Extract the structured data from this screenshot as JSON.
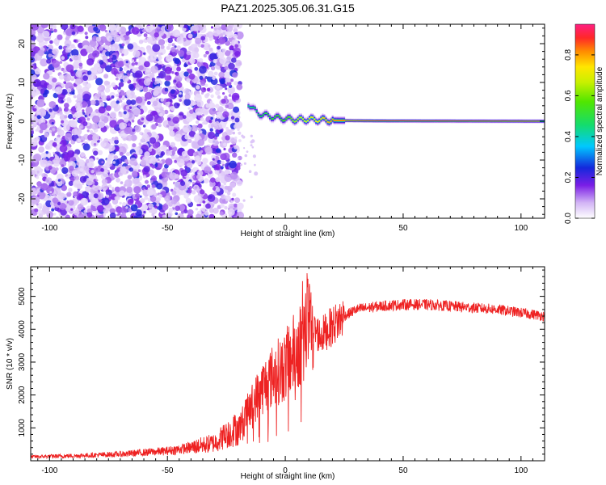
{
  "chart_data": [
    {
      "type": "heatmap",
      "title": "PAZ1.2025.305.06.31.G15",
      "xlabel": "Height of straight line (km)",
      "ylabel": "Frequency (Hz)",
      "xlim": [
        -108,
        110
      ],
      "ylim": [
        -25,
        25
      ],
      "xticks": [
        -100,
        -50,
        0,
        50,
        100
      ],
      "yticks": [
        -20,
        -10,
        0,
        10,
        20
      ],
      "colorbar": {
        "label": "Normalized spectral amplitude",
        "range": [
          0.0,
          0.95
        ],
        "ticks": [
          0.0,
          0.2,
          0.4,
          0.6,
          0.8
        ]
      },
      "features": {
        "noise_region_x": [
          -108,
          -20
        ],
        "signal_track": [
          {
            "x": -16,
            "freq": 4.5,
            "amp": 0.45
          },
          {
            "x": -12,
            "freq": 2.0,
            "amp": 0.5
          },
          {
            "x": -5,
            "freq": 1.0,
            "amp": 0.55
          },
          {
            "x": 0,
            "freq": 0.6,
            "amp": 0.6
          },
          {
            "x": 5,
            "freq": 0.4,
            "amp": 0.7
          },
          {
            "x": 10,
            "freq": 0.5,
            "amp": 0.75
          },
          {
            "x": 20,
            "freq": 0.2,
            "amp": 0.85
          },
          {
            "x": 40,
            "freq": 0.1,
            "amp": 0.9
          },
          {
            "x": 110,
            "freq": 0.0,
            "amp": 0.9
          }
        ]
      }
    },
    {
      "type": "line",
      "xlabel": "Height of straight line (km)",
      "ylabel": "SNR (10 * v/v)",
      "xlim": [
        -108,
        110
      ],
      "ylim": [
        0,
        5900
      ],
      "xticks": [
        -100,
        -50,
        0,
        50,
        100
      ],
      "yticks": [
        1000,
        2000,
        3000,
        4000,
        5000
      ],
      "series": [
        {
          "name": "SNR",
          "color": "#ee2222",
          "envelope": {
            "x": [
              -108,
              -90,
              -70,
              -50,
              -40,
              -30,
              -25,
              -20,
              -15,
              -10,
              -5,
              0,
              5,
              8,
              10,
              15,
              20,
              25,
              30,
              40,
              50,
              60,
              70,
              80,
              90,
              100,
              110
            ],
            "y": [
              120,
              150,
              200,
              300,
              400,
              550,
              800,
              1000,
              1600,
              2200,
              2600,
              2900,
              3400,
              3800,
              4100,
              3800,
              4100,
              4400,
              4600,
              4700,
              4750,
              4750,
              4700,
              4650,
              4600,
              4500,
              4400
            ]
          }
        }
      ]
    }
  ]
}
